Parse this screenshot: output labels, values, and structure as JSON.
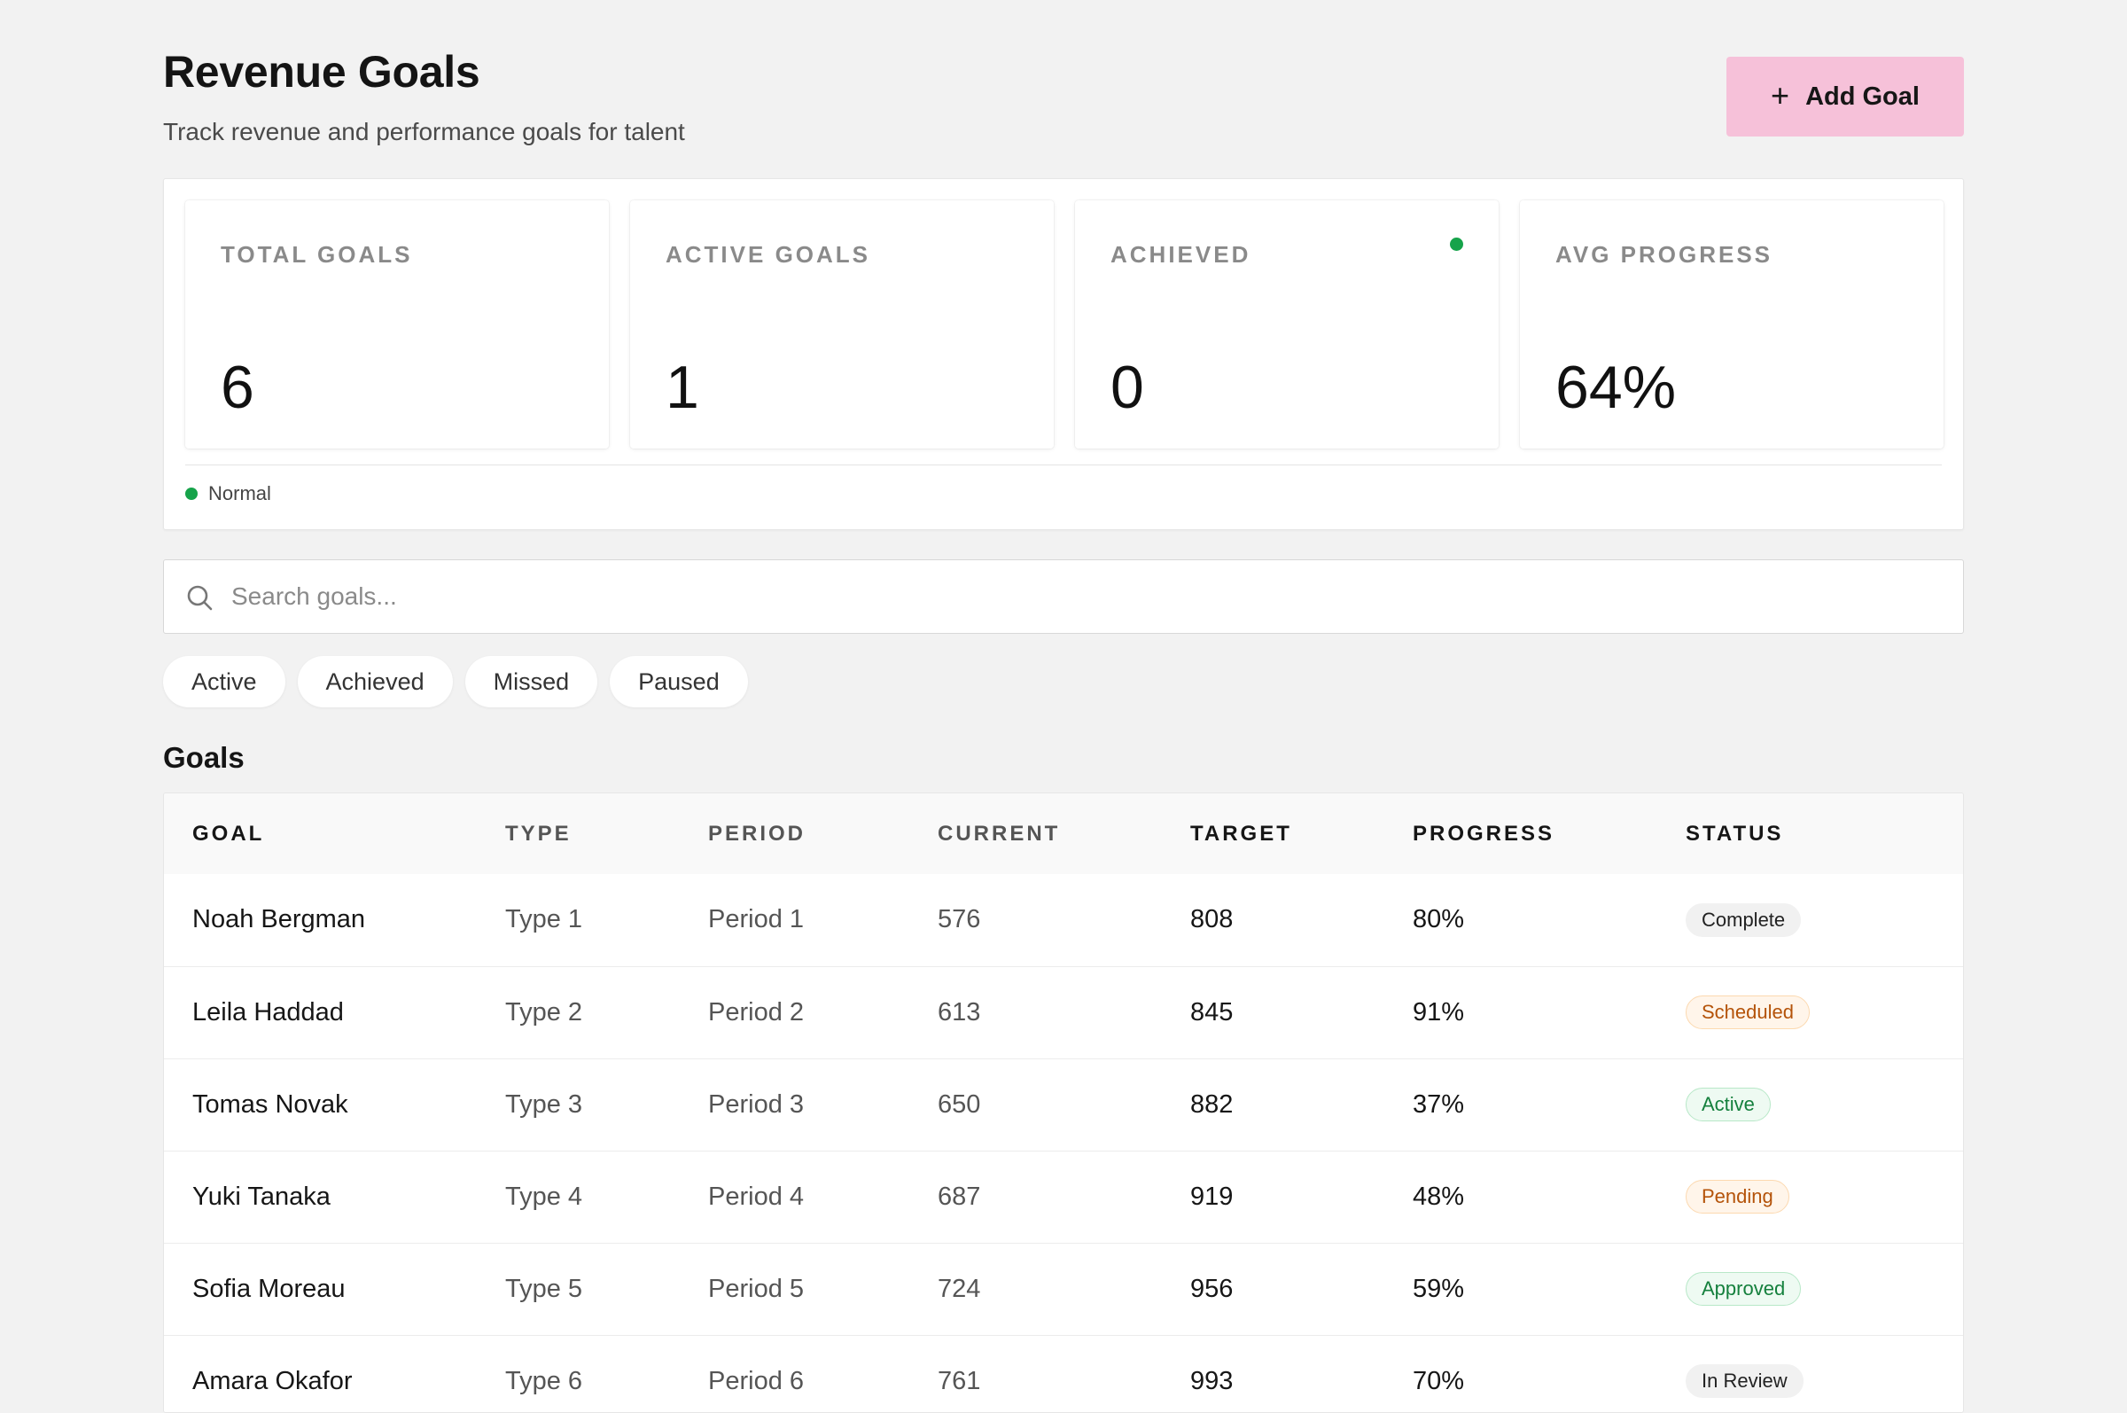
{
  "header": {
    "title": "Revenue Goals",
    "subtitle": "Track revenue and performance goals for talent",
    "add_button_label": "Add Goal",
    "add_button_icon": "plus-icon"
  },
  "stats": [
    {
      "label": "TOTAL GOALS",
      "value": "6"
    },
    {
      "label": "ACTIVE GOALS",
      "value": "1"
    },
    {
      "label": "ACHIEVED",
      "value": "0",
      "indicator_color": "#16a34a"
    },
    {
      "label": "AVG PROGRESS",
      "value": "64%"
    }
  ],
  "status": {
    "label": "Normal",
    "color": "#16a34a"
  },
  "search": {
    "placeholder": "Search goals...",
    "value": "",
    "icon": "search-icon"
  },
  "filters": [
    "Active",
    "Achieved",
    "Missed",
    "Paused"
  ],
  "goals": {
    "title": "Goals",
    "columns": [
      "GOAL",
      "TYPE",
      "PERIOD",
      "CURRENT",
      "TARGET",
      "PROGRESS",
      "STATUS"
    ],
    "rows": [
      {
        "goal": "Noah Bergman",
        "type": "Type 1",
        "period": "Period 1",
        "current": "576",
        "target": "808",
        "progress": "80%",
        "status": "Complete"
      },
      {
        "goal": "Leila Haddad",
        "type": "Type 2",
        "period": "Period 2",
        "current": "613",
        "target": "845",
        "progress": "91%",
        "status": "Scheduled"
      },
      {
        "goal": "Tomas Novak",
        "type": "Type 3",
        "period": "Period 3",
        "current": "650",
        "target": "882",
        "progress": "37%",
        "status": "Active"
      },
      {
        "goal": "Yuki Tanaka",
        "type": "Type 4",
        "period": "Period 4",
        "current": "687",
        "target": "919",
        "progress": "48%",
        "status": "Pending"
      },
      {
        "goal": "Sofia Moreau",
        "type": "Type 5",
        "period": "Period 5",
        "current": "724",
        "target": "956",
        "progress": "59%",
        "status": "Approved"
      },
      {
        "goal": "Amara Okafor",
        "type": "Type 6",
        "period": "Period 6",
        "current": "761",
        "target": "993",
        "progress": "70%",
        "status": "In Review"
      }
    ]
  },
  "colors": {
    "accent_button": "#f6c1d9",
    "status_green": "#16a34a",
    "badge_orange_text": "#b45309",
    "badge_green_text": "#15803d"
  }
}
